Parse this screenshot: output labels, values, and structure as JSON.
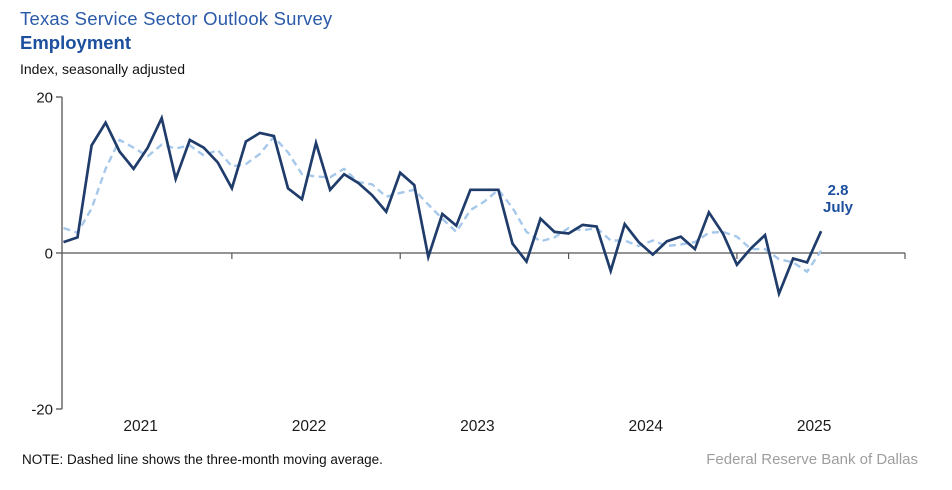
{
  "header": {
    "title": "Texas Service Sector Outlook Survey",
    "subtitle": "Employment",
    "axis_unit_label": "Index, seasonally adjusted"
  },
  "footer": {
    "note": "NOTE: Dashed line shows the three-month moving average.",
    "source": "Federal Reserve Bank of Dallas"
  },
  "annotation": {
    "value": "2.8",
    "label": "July"
  },
  "colors": {
    "title_blue": "#2a5aa8",
    "subtitle_blue": "#1d4f9f",
    "line_navy": "#1f3c6b",
    "ma_light_blue": "#a6c8eb",
    "axis_gray": "#555555",
    "tick_text": "#1a1a1a",
    "source_gray": "#9e9e9e"
  },
  "chart_data": {
    "type": "line",
    "title": "Texas Service Sector Outlook Survey — Employment",
    "ylabel": "Index, seasonally adjusted",
    "ylim": [
      -20,
      20
    ],
    "y_ticks": [
      "20",
      "0",
      "-20"
    ],
    "y_tick_values": [
      20,
      0,
      -20
    ],
    "x_tick_labels": [
      "2021",
      "2022",
      "2023",
      "2024",
      "2025"
    ],
    "grid": false,
    "legend_position": "none",
    "months": [
      "2021-01",
      "2021-02",
      "2021-03",
      "2021-04",
      "2021-05",
      "2021-06",
      "2021-07",
      "2021-08",
      "2021-09",
      "2021-10",
      "2021-11",
      "2021-12",
      "2022-01",
      "2022-02",
      "2022-03",
      "2022-04",
      "2022-05",
      "2022-06",
      "2022-07",
      "2022-08",
      "2022-09",
      "2022-10",
      "2022-11",
      "2022-12",
      "2023-01",
      "2023-02",
      "2023-03",
      "2023-04",
      "2023-05",
      "2023-06",
      "2023-07",
      "2023-08",
      "2023-09",
      "2023-10",
      "2023-11",
      "2023-12",
      "2024-01",
      "2024-02",
      "2024-03",
      "2024-04",
      "2024-05",
      "2024-06",
      "2024-07",
      "2024-08",
      "2024-09",
      "2024-10",
      "2024-11",
      "2024-12",
      "2025-01",
      "2025-02",
      "2025-03",
      "2025-04",
      "2025-05",
      "2025-06",
      "2025-07"
    ],
    "series": [
      {
        "name": "Employment index",
        "style": "solid",
        "values": [
          1.4,
          2.0,
          13.8,
          16.7,
          13.0,
          10.8,
          13.5,
          17.3,
          9.5,
          14.5,
          13.5,
          11.6,
          8.3,
          14.3,
          15.4,
          15.0,
          8.3,
          6.9,
          14.1,
          8.1,
          10.1,
          9.0,
          7.4,
          5.3,
          10.3,
          8.7,
          -0.5,
          5.0,
          3.5,
          8.1,
          8.1,
          8.1,
          1.2,
          -1.1,
          4.4,
          2.7,
          2.5,
          3.6,
          3.4,
          -2.3,
          3.7,
          1.4,
          -0.2,
          1.5,
          2.1,
          0.5,
          5.2,
          2.5,
          -1.5,
          0.6,
          2.3,
          -5.2,
          -0.7,
          -1.2,
          2.8
        ]
      },
      {
        "name": "Three-month moving average",
        "style": "dashed",
        "values": [
          3.2,
          2.6,
          5.7,
          10.8,
          14.5,
          13.5,
          12.4,
          13.9,
          13.4,
          13.8,
          12.5,
          13.2,
          11.1,
          11.4,
          12.7,
          14.9,
          12.9,
          10.1,
          9.8,
          9.7,
          10.8,
          9.1,
          8.8,
          7.2,
          7.7,
          8.1,
          6.2,
          4.4,
          2.7,
          5.5,
          6.6,
          8.1,
          5.8,
          2.7,
          1.5,
          2.0,
          3.2,
          2.9,
          3.2,
          1.6,
          1.6,
          0.9,
          1.6,
          0.9,
          1.1,
          1.4,
          2.6,
          2.7,
          2.1,
          0.5,
          0.5,
          -0.8,
          -1.2,
          -2.4,
          0.3
        ]
      }
    ],
    "last_point": {
      "month": "2025-07",
      "value": 2.8,
      "label_value": "2.8",
      "label_month": "July"
    }
  }
}
